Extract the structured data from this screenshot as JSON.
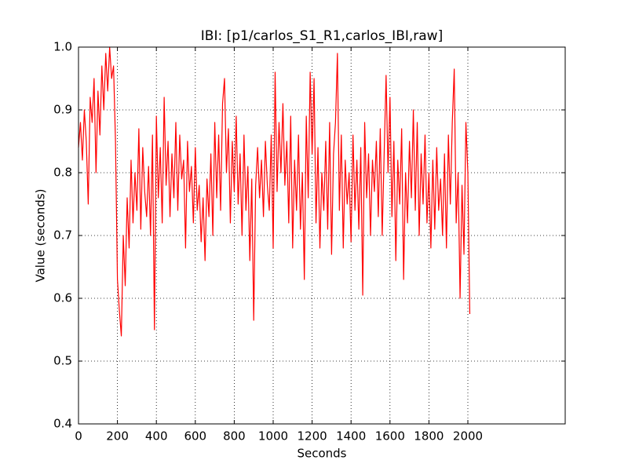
{
  "chart_data": {
    "type": "line",
    "title": "IBI: [p1/carlos_S1_R1,carlos_IBI,raw]",
    "x_label": "Seconds",
    "y_label": "Value (seconds)",
    "xlim": [
      0,
      2500
    ],
    "xticks": [
      0,
      200,
      400,
      600,
      800,
      1000,
      1200,
      1400,
      1600,
      1800,
      2000
    ],
    "ylim": [
      0.4,
      1.0
    ],
    "yticks": [
      0.4,
      0.5,
      0.6,
      0.7,
      0.8,
      0.9,
      {
        "value": 1.0,
        "label": "1.0"
      }
    ],
    "grid": true,
    "x": [
      0,
      10,
      20,
      30,
      40,
      50,
      60,
      70,
      80,
      90,
      100,
      110,
      120,
      130,
      140,
      150,
      160,
      170,
      180,
      190,
      200,
      210,
      220,
      230,
      240,
      250,
      260,
      270,
      280,
      290,
      300,
      310,
      320,
      330,
      340,
      350,
      360,
      370,
      380,
      390,
      400,
      410,
      420,
      430,
      440,
      450,
      460,
      470,
      480,
      490,
      500,
      510,
      520,
      530,
      540,
      550,
      560,
      570,
      580,
      590,
      600,
      610,
      620,
      630,
      640,
      650,
      660,
      670,
      680,
      690,
      700,
      710,
      720,
      730,
      740,
      750,
      760,
      770,
      780,
      790,
      800,
      810,
      820,
      830,
      840,
      850,
      860,
      870,
      880,
      890,
      900,
      910,
      920,
      930,
      940,
      950,
      960,
      970,
      980,
      990,
      1000,
      1010,
      1020,
      1030,
      1040,
      1050,
      1060,
      1070,
      1080,
      1090,
      1100,
      1110,
      1120,
      1130,
      1140,
      1150,
      1160,
      1170,
      1180,
      1190,
      1200,
      1210,
      1220,
      1230,
      1240,
      1250,
      1260,
      1270,
      1280,
      1290,
      1300,
      1310,
      1320,
      1330,
      1340,
      1350,
      1360,
      1370,
      1380,
      1390,
      1400,
      1410,
      1420,
      1430,
      1440,
      1450,
      1460,
      1470,
      1480,
      1490,
      1500,
      1510,
      1520,
      1530,
      1540,
      1550,
      1560,
      1570,
      1580,
      1590,
      1600,
      1610,
      1620,
      1630,
      1640,
      1650,
      1660,
      1670,
      1680,
      1690,
      1700,
      1710,
      1720,
      1730,
      1740,
      1750,
      1760,
      1770,
      1780,
      1790,
      1800,
      1810,
      1820,
      1830,
      1840,
      1850,
      1860,
      1870,
      1880,
      1890,
      1900,
      1910,
      1920,
      1930,
      1940,
      1950,
      1960,
      1970,
      1980,
      1990,
      2000,
      2010
    ],
    "series": [
      {
        "color": "#ff0000",
        "values": [
          0.84,
          0.88,
          0.82,
          0.9,
          0.85,
          0.75,
          0.92,
          0.88,
          0.95,
          0.8,
          0.93,
          0.86,
          0.97,
          0.9,
          0.99,
          0.93,
          1.0,
          0.95,
          0.97,
          0.85,
          0.63,
          0.58,
          0.54,
          0.7,
          0.62,
          0.76,
          0.68,
          0.82,
          0.72,
          0.8,
          0.74,
          0.87,
          0.71,
          0.84,
          0.77,
          0.73,
          0.81,
          0.7,
          0.86,
          0.55,
          0.89,
          0.76,
          0.84,
          0.72,
          0.92,
          0.78,
          0.85,
          0.73,
          0.83,
          0.76,
          0.88,
          0.74,
          0.86,
          0.79,
          0.82,
          0.68,
          0.85,
          0.77,
          0.81,
          0.72,
          0.84,
          0.74,
          0.78,
          0.69,
          0.76,
          0.66,
          0.79,
          0.73,
          0.83,
          0.7,
          0.88,
          0.76,
          0.86,
          0.74,
          0.91,
          0.95,
          0.8,
          0.87,
          0.72,
          0.85,
          0.77,
          0.89,
          0.75,
          0.83,
          0.7,
          0.86,
          0.74,
          0.81,
          0.66,
          0.79,
          0.565,
          0.78,
          0.84,
          0.76,
          0.82,
          0.73,
          0.85,
          0.78,
          0.74,
          0.86,
          0.68,
          0.96,
          0.77,
          0.88,
          0.8,
          0.91,
          0.78,
          0.85,
          0.72,
          0.89,
          0.68,
          0.82,
          0.74,
          0.86,
          0.71,
          0.8,
          0.63,
          0.89,
          0.76,
          0.96,
          0.83,
          0.95,
          0.72,
          0.84,
          0.68,
          0.8,
          0.74,
          0.85,
          0.71,
          0.88,
          0.67,
          0.83,
          0.88,
          0.99,
          0.74,
          0.86,
          0.68,
          0.82,
          0.75,
          0.8,
          0.69,
          0.86,
          0.74,
          0.82,
          0.71,
          0.84,
          0.605,
          0.88,
          0.76,
          0.83,
          0.7,
          0.82,
          0.77,
          0.85,
          0.73,
          0.87,
          0.7,
          0.83,
          0.955,
          0.8,
          0.92,
          0.73,
          0.85,
          0.66,
          0.82,
          0.75,
          0.87,
          0.63,
          0.8,
          0.72,
          0.85,
          0.76,
          0.9,
          0.74,
          0.88,
          0.7,
          0.83,
          0.75,
          0.86,
          0.72,
          0.8,
          0.68,
          0.82,
          0.71,
          0.84,
          0.74,
          0.79,
          0.7,
          0.83,
          0.68,
          0.86,
          0.75,
          0.88,
          0.965,
          0.72,
          0.8,
          0.6,
          0.78,
          0.67,
          0.88,
          0.8,
          0.575
        ]
      }
    ]
  }
}
